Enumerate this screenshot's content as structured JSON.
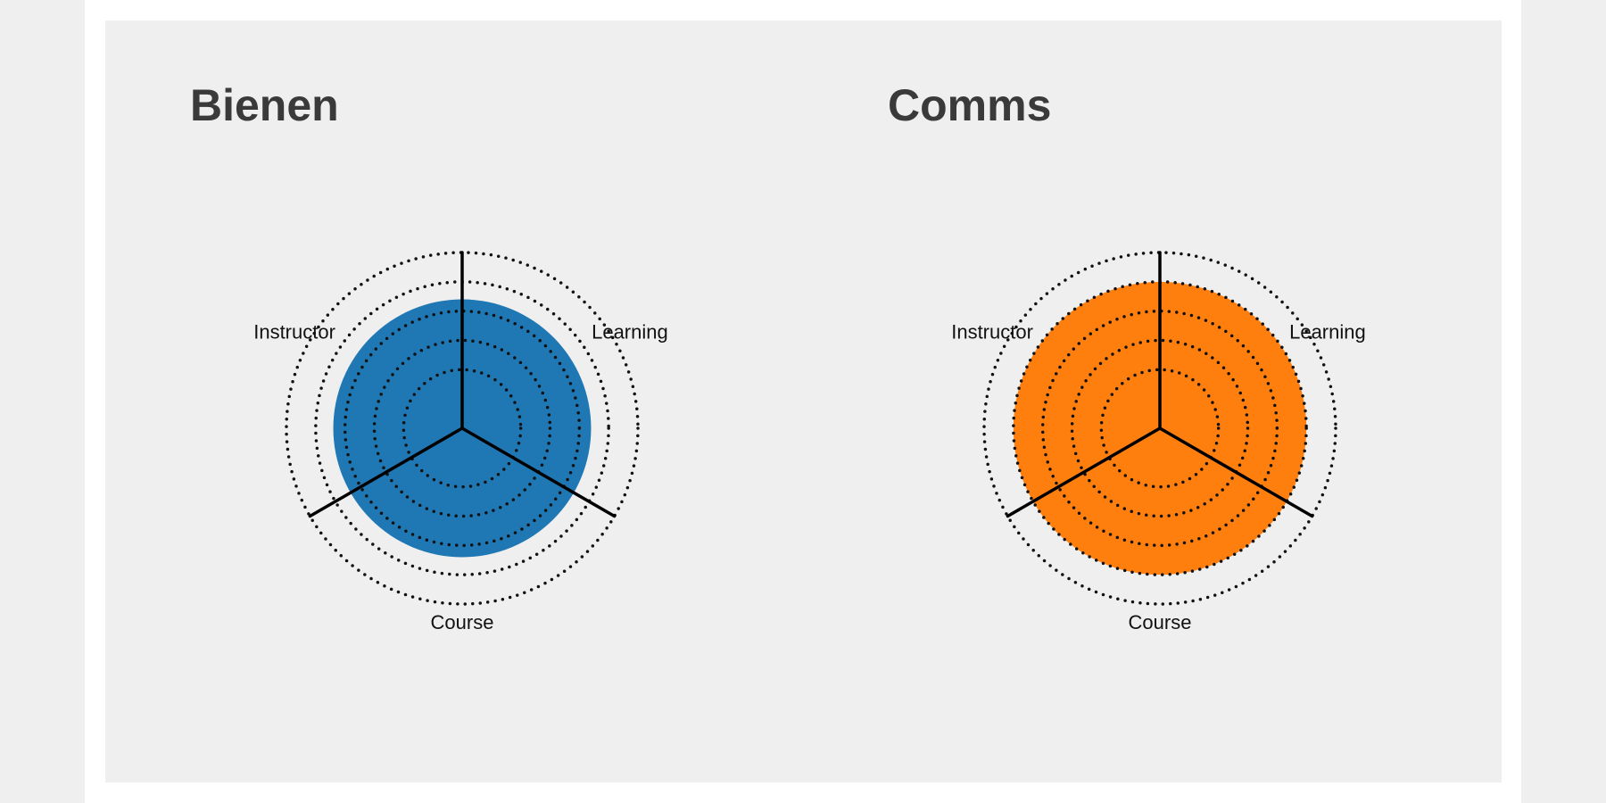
{
  "chart_data": [
    {
      "type": "radar",
      "title": "Bienen",
      "axes": [
        "Learning",
        "Course",
        "Instructor"
      ],
      "grid_levels": 5,
      "rmax": 6,
      "series": [
        {
          "values": [
            4.4,
            4.4,
            4.4
          ],
          "color": "#1f77b4"
        }
      ],
      "grid": "dotted",
      "legend": "none"
    },
    {
      "type": "radar",
      "title": "Comms",
      "axes": [
        "Learning",
        "Course",
        "Instructor"
      ],
      "grid_levels": 5,
      "rmax": 6,
      "series": [
        {
          "values": [
            5.0,
            5.0,
            5.0
          ],
          "color": "#ff7f0e"
        }
      ],
      "grid": "dotted",
      "legend": "none"
    }
  ]
}
